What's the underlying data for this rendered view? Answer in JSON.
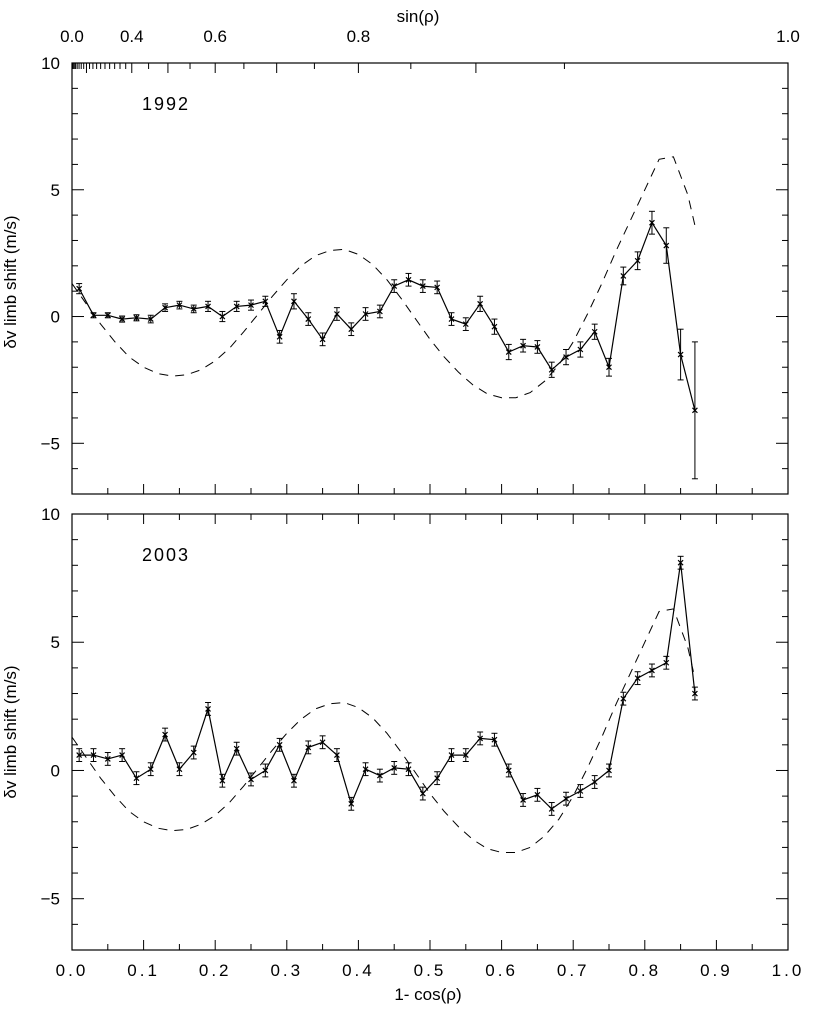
{
  "chart_data": [
    {
      "type": "line",
      "panel": "top",
      "annotation": "1992",
      "xlabel": "1- cos(ρ)",
      "ylabel": "δv limb shift (m/s)",
      "top_axis_label": "sin(ρ)",
      "top_axis_ticks": [
        {
          "label": "0.0",
          "value": 0.0
        },
        {
          "label": "0.4",
          "value": 0.4
        },
        {
          "label": "0.6",
          "value": 0.6
        },
        {
          "label": "0.8",
          "value": 0.8
        },
        {
          "label": "1.0",
          "value": 1.0
        }
      ],
      "xlim": [
        0,
        1
      ],
      "ylim": [
        -7,
        10
      ],
      "x_ticks": [
        "0.0",
        "0.1",
        "0.2",
        "0.3",
        "0.4",
        "0.5",
        "0.6",
        "0.7",
        "0.8",
        "0.9",
        "1.0"
      ],
      "y_ticks": [
        {
          "label": "10",
          "value": 10
        },
        {
          "label": "5",
          "value": 5
        },
        {
          "label": "0",
          "value": 0
        },
        {
          "label": "−5",
          "value": -5
        }
      ],
      "show_x_tick_labels": false,
      "grid": false,
      "series": [
        {
          "style": "solid-markers-errorbars",
          "x": [
            0.01,
            0.03,
            0.05,
            0.07,
            0.09,
            0.11,
            0.13,
            0.15,
            0.17,
            0.19,
            0.21,
            0.23,
            0.25,
            0.27,
            0.29,
            0.31,
            0.33,
            0.35,
            0.37,
            0.39,
            0.41,
            0.43,
            0.45,
            0.47,
            0.49,
            0.51,
            0.53,
            0.55,
            0.57,
            0.59,
            0.61,
            0.63,
            0.65,
            0.67,
            0.69,
            0.71,
            0.73,
            0.75,
            0.77,
            0.79,
            0.81,
            0.83,
            0.85,
            0.87
          ],
          "y": [
            1.1,
            0.05,
            0.05,
            -0.1,
            -0.05,
            -0.1,
            0.35,
            0.45,
            0.3,
            0.4,
            0.0,
            0.4,
            0.45,
            0.6,
            -0.8,
            0.6,
            -0.1,
            -0.9,
            0.1,
            -0.5,
            0.1,
            0.2,
            1.2,
            1.45,
            1.2,
            1.15,
            -0.1,
            -0.3,
            0.5,
            -0.4,
            -1.4,
            -1.15,
            -1.2,
            -2.1,
            -1.6,
            -1.3,
            -0.6,
            -2.0,
            1.6,
            2.2,
            3.7,
            2.8,
            -1.5,
            -3.7
          ],
          "err": [
            0.2,
            0.1,
            0.1,
            0.12,
            0.12,
            0.15,
            0.15,
            0.15,
            0.15,
            0.2,
            0.2,
            0.2,
            0.2,
            0.2,
            0.25,
            0.3,
            0.25,
            0.25,
            0.25,
            0.25,
            0.25,
            0.25,
            0.25,
            0.25,
            0.25,
            0.25,
            0.25,
            0.25,
            0.3,
            0.3,
            0.3,
            0.25,
            0.25,
            0.3,
            0.3,
            0.3,
            0.3,
            0.35,
            0.35,
            0.35,
            0.45,
            0.7,
            1.0,
            2.7
          ]
        },
        {
          "style": "dashed",
          "x": [
            0.0,
            0.02,
            0.04,
            0.06,
            0.08,
            0.1,
            0.12,
            0.14,
            0.16,
            0.18,
            0.2,
            0.22,
            0.24,
            0.26,
            0.28,
            0.3,
            0.32,
            0.34,
            0.36,
            0.38,
            0.4,
            0.42,
            0.44,
            0.46,
            0.48,
            0.5,
            0.52,
            0.54,
            0.56,
            0.58,
            0.6,
            0.62,
            0.64,
            0.66,
            0.68,
            0.7,
            0.72,
            0.74,
            0.76,
            0.78,
            0.8,
            0.82,
            0.84,
            0.86,
            0.87
          ],
          "y": [
            1.3,
            0.5,
            -0.3,
            -1.0,
            -1.6,
            -2.0,
            -2.25,
            -2.35,
            -2.3,
            -2.1,
            -1.75,
            -1.25,
            -0.6,
            0.1,
            0.8,
            1.45,
            2.0,
            2.4,
            2.6,
            2.65,
            2.45,
            2.05,
            1.45,
            0.7,
            -0.1,
            -0.9,
            -1.6,
            -2.2,
            -2.7,
            -3.05,
            -3.2,
            -3.2,
            -3.0,
            -2.55,
            -1.9,
            -1.0,
            0.1,
            1.3,
            2.6,
            3.8,
            5.0,
            6.2,
            6.3,
            4.8,
            3.6
          ]
        }
      ]
    },
    {
      "type": "line",
      "panel": "bottom",
      "annotation": "2003",
      "xlabel": "1- cos(ρ)",
      "ylabel": "δv limb shift (m/s)",
      "xlim": [
        0,
        1
      ],
      "ylim": [
        -7,
        10
      ],
      "x_ticks": [
        "0.0",
        "0.1",
        "0.2",
        "0.3",
        "0.4",
        "0.5",
        "0.6",
        "0.7",
        "0.8",
        "0.9",
        "1.0"
      ],
      "y_ticks": [
        {
          "label": "10",
          "value": 10
        },
        {
          "label": "5",
          "value": 5
        },
        {
          "label": "0",
          "value": 0
        },
        {
          "label": "−5",
          "value": -5
        }
      ],
      "show_x_tick_labels": true,
      "grid": false,
      "series": [
        {
          "style": "solid-markers-errorbars",
          "x": [
            0.01,
            0.03,
            0.05,
            0.07,
            0.09,
            0.11,
            0.13,
            0.15,
            0.17,
            0.19,
            0.21,
            0.23,
            0.25,
            0.27,
            0.29,
            0.31,
            0.33,
            0.35,
            0.37,
            0.39,
            0.41,
            0.43,
            0.45,
            0.47,
            0.49,
            0.51,
            0.53,
            0.55,
            0.57,
            0.59,
            0.61,
            0.63,
            0.65,
            0.67,
            0.69,
            0.71,
            0.73,
            0.75,
            0.77,
            0.79,
            0.81,
            0.83,
            0.85,
            0.87
          ],
          "y": [
            0.6,
            0.6,
            0.45,
            0.6,
            -0.3,
            0.05,
            1.4,
            0.05,
            0.7,
            2.4,
            -0.4,
            0.85,
            -0.35,
            0.0,
            1.0,
            -0.4,
            0.9,
            1.1,
            0.6,
            -1.3,
            0.05,
            -0.2,
            0.1,
            0.05,
            -0.9,
            -0.3,
            0.6,
            0.6,
            1.25,
            1.2,
            0.0,
            -1.15,
            -0.95,
            -1.5,
            -1.1,
            -0.8,
            -0.45,
            0.0,
            2.8,
            3.6,
            3.9,
            4.2,
            8.1,
            3.0
          ]
        },
        {
          "style": "dashed",
          "x": [
            0.0,
            0.02,
            0.04,
            0.06,
            0.08,
            0.1,
            0.12,
            0.14,
            0.16,
            0.18,
            0.2,
            0.22,
            0.24,
            0.26,
            0.28,
            0.3,
            0.32,
            0.34,
            0.36,
            0.38,
            0.4,
            0.42,
            0.44,
            0.46,
            0.48,
            0.5,
            0.52,
            0.54,
            0.56,
            0.58,
            0.6,
            0.62,
            0.64,
            0.66,
            0.68,
            0.7,
            0.72,
            0.74,
            0.76,
            0.78,
            0.8,
            0.82,
            0.84,
            0.86,
            0.87
          ],
          "y": [
            1.3,
            0.5,
            -0.3,
            -1.0,
            -1.6,
            -2.0,
            -2.25,
            -2.35,
            -2.3,
            -2.1,
            -1.75,
            -1.25,
            -0.6,
            0.1,
            0.8,
            1.45,
            2.0,
            2.4,
            2.6,
            2.65,
            2.45,
            2.05,
            1.45,
            0.7,
            -0.1,
            -0.9,
            -1.6,
            -2.2,
            -2.7,
            -3.05,
            -3.2,
            -3.2,
            -3.0,
            -2.55,
            -1.9,
            -1.0,
            0.1,
            1.3,
            2.6,
            3.8,
            5.0,
            6.2,
            6.3,
            4.8,
            3.6
          ]
        }
      ]
    }
  ]
}
